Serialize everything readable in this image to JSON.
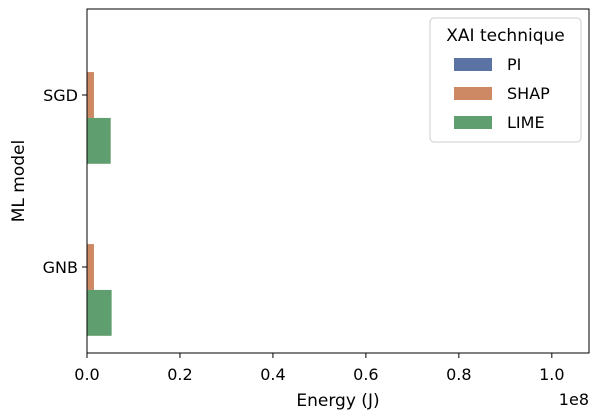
{
  "chart_data": {
    "type": "bar",
    "orientation": "horizontal",
    "categories": [
      "SGD",
      "GNB"
    ],
    "series": [
      {
        "name": "PI",
        "color": "#5a73a4",
        "values": [
          0,
          0
        ]
      },
      {
        "name": "SHAP",
        "color": "#cc8963",
        "values": [
          1500000,
          1500000
        ]
      },
      {
        "name": "LIME",
        "color": "#5f9e6e",
        "values": [
          5100000,
          5300000
        ]
      }
    ],
    "xlabel": "Energy (J)",
    "ylabel": "ML model",
    "xlim": [
      0,
      108000000
    ],
    "x_ticks": [
      "0.0",
      "0.2",
      "0.4",
      "0.6",
      "0.8",
      "1.0"
    ],
    "x_tick_values": [
      0,
      20000000,
      40000000,
      60000000,
      80000000,
      100000000
    ],
    "x_offset_label": "1e8",
    "legend": {
      "title": "XAI technique",
      "placement": "top-right"
    },
    "grid": false
  }
}
